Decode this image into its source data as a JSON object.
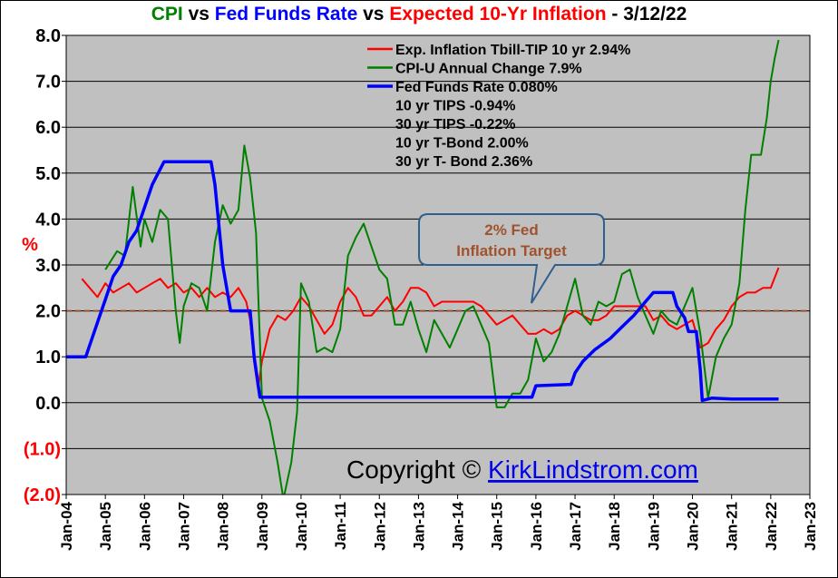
{
  "title": {
    "part1": "CPI",
    "part2": " vs ",
    "part3": "Fed Funds Rate",
    "part4": " vs ",
    "part5": "Expected 10-Yr Inflation",
    "part6": " - 3/12/22"
  },
  "colors": {
    "plot_background": "#c0c0c0",
    "inflation": "#ff0000",
    "cpi": "#008000",
    "fed_funds": "#0000ff",
    "target_line": "#a0522d",
    "target_callout_text": "#a0522d"
  },
  "y_unit_label": "%",
  "y_ticks": [
    "8.0",
    "7.0",
    "6.0",
    "5.0",
    "4.0",
    "3.0",
    "2.0",
    "1.0",
    "0.0",
    "(1.0)",
    "(2.0)"
  ],
  "x_ticks": [
    "Jan-04",
    "Jan-05",
    "Jan-06",
    "Jan-07",
    "Jan-08",
    "Jan-09",
    "Jan-10",
    "Jan-11",
    "Jan-12",
    "Jan-13",
    "Jan-14",
    "Jan-15",
    "Jan-16",
    "Jan-17",
    "Jan-18",
    "Jan-19",
    "Jan-20",
    "Jan-21",
    "Jan-22",
    "Jan-23"
  ],
  "legend": [
    {
      "label": "Exp. Inflation Tbill-TIP 10 yr 2.94%",
      "color": "#ff0000",
      "swatch": true
    },
    {
      "label": "CPI-U Annual Change 7.9%",
      "color": "#008000",
      "swatch": true
    },
    {
      "label": "Fed Funds Rate 0.080%",
      "color": "#0000ff",
      "swatch": true
    },
    {
      "label": "10 yr TIPS -0.94%",
      "color": "#000000",
      "swatch": false
    },
    {
      "label": "30 yr TIPS -0.22%",
      "color": "#000000",
      "swatch": false
    },
    {
      "label": "10 yr T-Bond 2.00%",
      "color": "#000000",
      "swatch": false
    },
    {
      "label": "30 yr T- Bond 2.36%",
      "color": "#000000",
      "swatch": false
    }
  ],
  "callout": {
    "line1": "2% Fed",
    "line2": "Inflation Target"
  },
  "copyright": {
    "prefix": "Copyright © ",
    "link": "KirkLindstrom.com"
  },
  "chart_data": {
    "type": "line",
    "xlabel": "",
    "ylabel": "%",
    "xlim": [
      2004.0,
      2023.0
    ],
    "ylim": [
      -2.0,
      8.0
    ],
    "grid": true,
    "legend_position": "top-right",
    "reference_line": {
      "y": 2.0,
      "label": "2% Fed Inflation Target",
      "style": "dashed"
    },
    "series": [
      {
        "name": "Exp. Inflation Tbill-TIP 10 yr 2.94%",
        "color": "#ff0000",
        "points": [
          [
            2004.4,
            2.7
          ],
          [
            2004.6,
            2.5
          ],
          [
            2004.8,
            2.3
          ],
          [
            2005.0,
            2.6
          ],
          [
            2005.2,
            2.4
          ],
          [
            2005.4,
            2.5
          ],
          [
            2005.6,
            2.6
          ],
          [
            2005.8,
            2.4
          ],
          [
            2006.0,
            2.5
          ],
          [
            2006.2,
            2.6
          ],
          [
            2006.4,
            2.7
          ],
          [
            2006.6,
            2.5
          ],
          [
            2006.8,
            2.6
          ],
          [
            2007.0,
            2.4
          ],
          [
            2007.2,
            2.5
          ],
          [
            2007.4,
            2.3
          ],
          [
            2007.6,
            2.5
          ],
          [
            2007.8,
            2.3
          ],
          [
            2008.0,
            2.4
          ],
          [
            2008.2,
            2.3
          ],
          [
            2008.4,
            2.5
          ],
          [
            2008.6,
            2.2
          ],
          [
            2008.7,
            1.8
          ],
          [
            2008.8,
            0.9
          ],
          [
            2008.9,
            0.3
          ],
          [
            2009.0,
            0.9
          ],
          [
            2009.2,
            1.6
          ],
          [
            2009.4,
            1.9
          ],
          [
            2009.6,
            1.8
          ],
          [
            2009.8,
            2.0
          ],
          [
            2010.0,
            2.3
          ],
          [
            2010.2,
            2.1
          ],
          [
            2010.4,
            1.8
          ],
          [
            2010.6,
            1.5
          ],
          [
            2010.8,
            1.7
          ],
          [
            2011.0,
            2.2
          ],
          [
            2011.2,
            2.5
          ],
          [
            2011.4,
            2.3
          ],
          [
            2011.6,
            1.9
          ],
          [
            2011.8,
            1.9
          ],
          [
            2012.0,
            2.1
          ],
          [
            2012.2,
            2.3
          ],
          [
            2012.4,
            2.0
          ],
          [
            2012.6,
            2.2
          ],
          [
            2012.8,
            2.5
          ],
          [
            2013.0,
            2.5
          ],
          [
            2013.2,
            2.4
          ],
          [
            2013.4,
            2.1
          ],
          [
            2013.6,
            2.2
          ],
          [
            2013.8,
            2.2
          ],
          [
            2014.0,
            2.2
          ],
          [
            2014.2,
            2.2
          ],
          [
            2014.4,
            2.2
          ],
          [
            2014.6,
            2.1
          ],
          [
            2014.8,
            1.9
          ],
          [
            2015.0,
            1.7
          ],
          [
            2015.2,
            1.8
          ],
          [
            2015.4,
            1.9
          ],
          [
            2015.6,
            1.7
          ],
          [
            2015.8,
            1.5
          ],
          [
            2016.0,
            1.5
          ],
          [
            2016.2,
            1.6
          ],
          [
            2016.4,
            1.5
          ],
          [
            2016.6,
            1.6
          ],
          [
            2016.8,
            1.9
          ],
          [
            2017.0,
            2.0
          ],
          [
            2017.2,
            1.9
          ],
          [
            2017.4,
            1.8
          ],
          [
            2017.6,
            1.8
          ],
          [
            2017.8,
            1.9
          ],
          [
            2018.0,
            2.1
          ],
          [
            2018.2,
            2.1
          ],
          [
            2018.4,
            2.1
          ],
          [
            2018.6,
            2.1
          ],
          [
            2018.8,
            2.1
          ],
          [
            2019.0,
            1.8
          ],
          [
            2019.2,
            1.9
          ],
          [
            2019.4,
            1.7
          ],
          [
            2019.6,
            1.6
          ],
          [
            2019.8,
            1.7
          ],
          [
            2020.0,
            1.8
          ],
          [
            2020.2,
            1.2
          ],
          [
            2020.4,
            1.3
          ],
          [
            2020.6,
            1.6
          ],
          [
            2020.8,
            1.8
          ],
          [
            2021.0,
            2.1
          ],
          [
            2021.2,
            2.3
          ],
          [
            2021.4,
            2.4
          ],
          [
            2021.6,
            2.4
          ],
          [
            2021.8,
            2.5
          ],
          [
            2022.0,
            2.5
          ],
          [
            2022.2,
            2.94
          ]
        ]
      },
      {
        "name": "CPI-U Annual Change 7.9%",
        "color": "#008000",
        "points": [
          [
            2005.0,
            2.9
          ],
          [
            2005.3,
            3.3
          ],
          [
            2005.5,
            3.2
          ],
          [
            2005.7,
            4.7
          ],
          [
            2005.9,
            3.4
          ],
          [
            2006.0,
            4.0
          ],
          [
            2006.2,
            3.5
          ],
          [
            2006.4,
            4.2
          ],
          [
            2006.6,
            4.0
          ],
          [
            2006.8,
            2.0
          ],
          [
            2006.9,
            1.3
          ],
          [
            2007.0,
            2.1
          ],
          [
            2007.2,
            2.6
          ],
          [
            2007.4,
            2.5
          ],
          [
            2007.6,
            2.0
          ],
          [
            2007.8,
            3.5
          ],
          [
            2008.0,
            4.3
          ],
          [
            2008.2,
            3.9
          ],
          [
            2008.4,
            4.2
          ],
          [
            2008.55,
            5.6
          ],
          [
            2008.7,
            4.9
          ],
          [
            2008.85,
            3.7
          ],
          [
            2009.0,
            0.1
          ],
          [
            2009.2,
            -0.4
          ],
          [
            2009.4,
            -1.3
          ],
          [
            2009.55,
            -2.1
          ],
          [
            2009.75,
            -1.3
          ],
          [
            2009.9,
            -0.2
          ],
          [
            2010.0,
            2.6
          ],
          [
            2010.2,
            2.2
          ],
          [
            2010.4,
            1.1
          ],
          [
            2010.6,
            1.2
          ],
          [
            2010.8,
            1.1
          ],
          [
            2011.0,
            1.6
          ],
          [
            2011.2,
            3.2
          ],
          [
            2011.4,
            3.6
          ],
          [
            2011.6,
            3.9
          ],
          [
            2011.8,
            3.4
          ],
          [
            2012.0,
            2.9
          ],
          [
            2012.2,
            2.7
          ],
          [
            2012.4,
            1.7
          ],
          [
            2012.6,
            1.7
          ],
          [
            2012.8,
            2.2
          ],
          [
            2013.0,
            1.6
          ],
          [
            2013.2,
            1.1
          ],
          [
            2013.4,
            1.8
          ],
          [
            2013.6,
            1.5
          ],
          [
            2013.8,
            1.2
          ],
          [
            2014.0,
            1.6
          ],
          [
            2014.2,
            2.0
          ],
          [
            2014.4,
            2.1
          ],
          [
            2014.6,
            1.7
          ],
          [
            2014.8,
            1.3
          ],
          [
            2015.0,
            -0.1
          ],
          [
            2015.2,
            -0.1
          ],
          [
            2015.4,
            0.2
          ],
          [
            2015.6,
            0.2
          ],
          [
            2015.8,
            0.5
          ],
          [
            2016.0,
            1.4
          ],
          [
            2016.2,
            0.9
          ],
          [
            2016.4,
            1.1
          ],
          [
            2016.6,
            1.5
          ],
          [
            2016.8,
            2.1
          ],
          [
            2017.0,
            2.7
          ],
          [
            2017.2,
            1.9
          ],
          [
            2017.4,
            1.7
          ],
          [
            2017.6,
            2.2
          ],
          [
            2017.8,
            2.1
          ],
          [
            2018.0,
            2.2
          ],
          [
            2018.2,
            2.8
          ],
          [
            2018.4,
            2.9
          ],
          [
            2018.6,
            2.3
          ],
          [
            2018.8,
            1.9
          ],
          [
            2019.0,
            1.5
          ],
          [
            2019.2,
            2.0
          ],
          [
            2019.4,
            1.8
          ],
          [
            2019.6,
            1.7
          ],
          [
            2019.8,
            2.1
          ],
          [
            2020.0,
            2.5
          ],
          [
            2020.2,
            1.5
          ],
          [
            2020.4,
            0.1
          ],
          [
            2020.6,
            1.0
          ],
          [
            2020.8,
            1.4
          ],
          [
            2021.0,
            1.7
          ],
          [
            2021.2,
            2.6
          ],
          [
            2021.35,
            4.2
          ],
          [
            2021.5,
            5.4
          ],
          [
            2021.75,
            5.4
          ],
          [
            2021.9,
            6.2
          ],
          [
            2022.0,
            7.0
          ],
          [
            2022.1,
            7.5
          ],
          [
            2022.2,
            7.9
          ]
        ]
      },
      {
        "name": "Fed Funds Rate 0.080%",
        "color": "#0000ff",
        "points": [
          [
            2004.0,
            1.0
          ],
          [
            2004.5,
            1.0
          ],
          [
            2004.6,
            1.25
          ],
          [
            2004.8,
            1.75
          ],
          [
            2005.0,
            2.25
          ],
          [
            2005.2,
            2.75
          ],
          [
            2005.4,
            3.0
          ],
          [
            2005.6,
            3.5
          ],
          [
            2005.8,
            3.75
          ],
          [
            2006.0,
            4.25
          ],
          [
            2006.2,
            4.75
          ],
          [
            2006.5,
            5.25
          ],
          [
            2007.7,
            5.25
          ],
          [
            2007.8,
            4.75
          ],
          [
            2008.0,
            3.0
          ],
          [
            2008.2,
            2.0
          ],
          [
            2008.7,
            2.0
          ],
          [
            2008.8,
            1.0
          ],
          [
            2008.95,
            0.12
          ],
          [
            2015.9,
            0.12
          ],
          [
            2016.0,
            0.37
          ],
          [
            2016.9,
            0.4
          ],
          [
            2017.0,
            0.65
          ],
          [
            2017.2,
            0.9
          ],
          [
            2017.5,
            1.15
          ],
          [
            2017.9,
            1.4
          ],
          [
            2018.2,
            1.65
          ],
          [
            2018.5,
            1.9
          ],
          [
            2018.8,
            2.2
          ],
          [
            2019.0,
            2.4
          ],
          [
            2019.5,
            2.4
          ],
          [
            2019.6,
            2.1
          ],
          [
            2019.8,
            1.85
          ],
          [
            2019.9,
            1.55
          ],
          [
            2020.1,
            1.55
          ],
          [
            2020.2,
            0.7
          ],
          [
            2020.25,
            0.05
          ],
          [
            2020.5,
            0.1
          ],
          [
            2021.0,
            0.08
          ],
          [
            2022.2,
            0.08
          ]
        ]
      }
    ]
  }
}
